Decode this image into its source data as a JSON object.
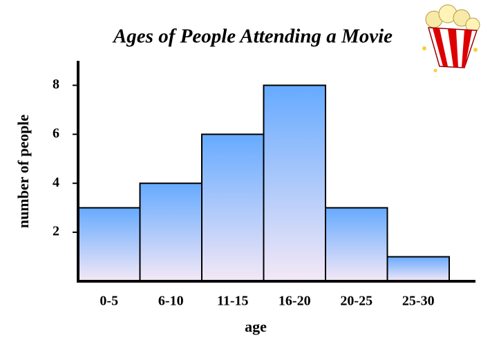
{
  "chart_data": {
    "type": "bar",
    "title": "Ages of People Attending a Movie",
    "x_label": "age",
    "y_label": "number of people",
    "categories": [
      "0-5",
      "6-10",
      "11-15",
      "16-20",
      "20-25",
      "25-30"
    ],
    "values": [
      3,
      4,
      6,
      8,
      3,
      1
    ],
    "color": "#66aaff",
    "ylim": [
      0,
      9
    ],
    "yticks": [
      2,
      4,
      6,
      8
    ],
    "grid": false
  }
}
